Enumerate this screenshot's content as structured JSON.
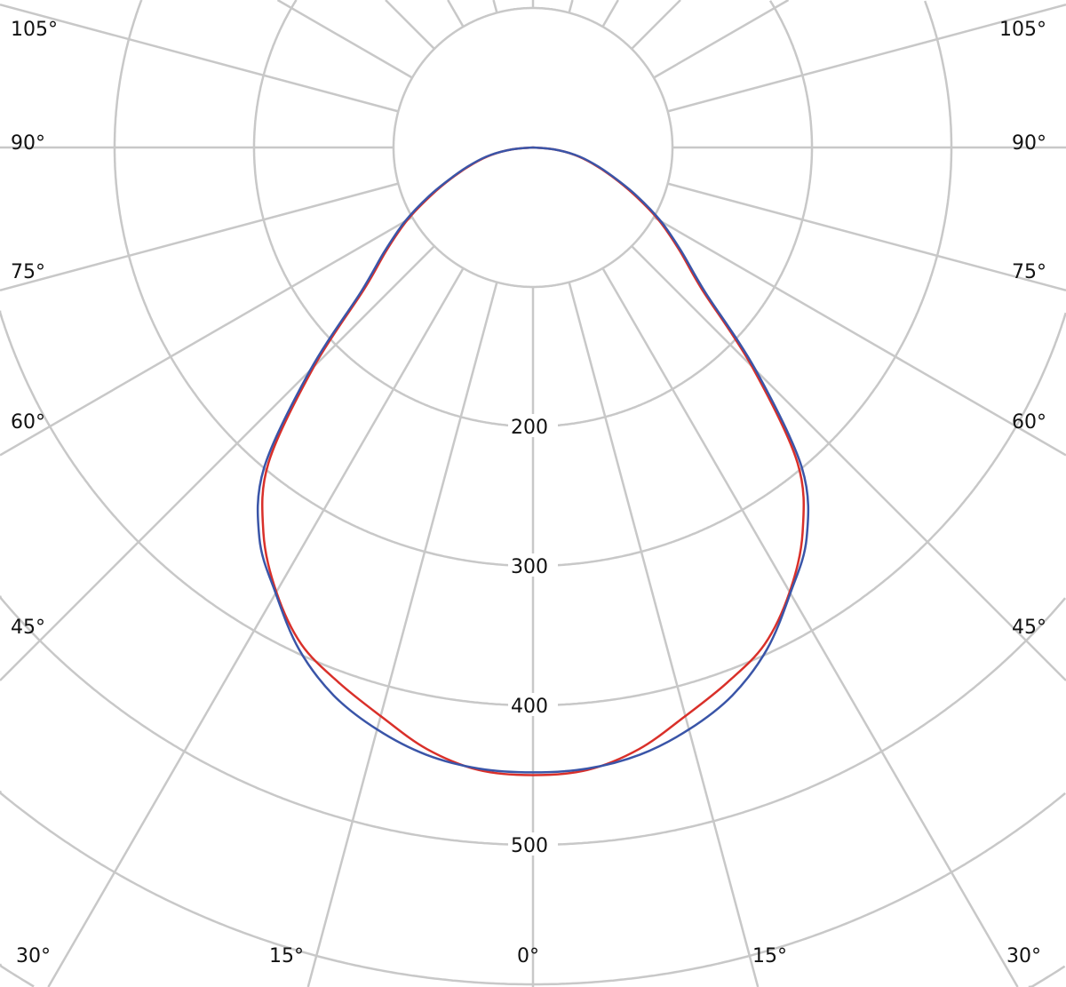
{
  "chart_data": {
    "type": "polar",
    "angle_unit": "degrees",
    "angle_zero": "bottom",
    "symmetric": true,
    "angles": [
      0,
      5,
      10,
      15,
      20,
      25,
      30,
      35,
      40,
      45,
      50,
      55,
      60,
      65,
      70,
      75,
      80,
      85,
      90
    ],
    "series": [
      {
        "color": "#d9302a",
        "values": [
          450,
          448,
          438,
          422,
          408,
          393,
          368,
          337,
          295,
          222,
          158,
          128,
          104,
          80,
          60,
          44,
          30,
          15,
          0
        ]
      },
      {
        "color": "#3a55a8",
        "values": [
          448,
          447,
          442,
          432,
          418,
          397,
          369,
          342,
          300,
          226,
          161,
          130,
          106,
          82,
          61,
          45,
          31,
          15,
          0
        ]
      }
    ],
    "radial_range": [
      0,
      500
    ],
    "radial_grid": [
      100,
      200,
      300,
      400,
      500,
      600,
      700,
      800
    ],
    "radial_tick_labels": [
      "200",
      "300",
      "400",
      "500"
    ],
    "radial_tick_values": [
      200,
      300,
      400,
      500
    ],
    "angle_grid_step": 15,
    "angle_tick_labels": {
      "left": [
        "105°",
        "90°",
        "75°",
        "60°",
        "45°",
        "30°",
        "15°",
        "0°"
      ],
      "right": [
        "105°",
        "90°",
        "75°",
        "60°",
        "45°",
        "30°",
        "15°"
      ]
    },
    "grid": true,
    "grid_color": "#c8c8c8"
  }
}
